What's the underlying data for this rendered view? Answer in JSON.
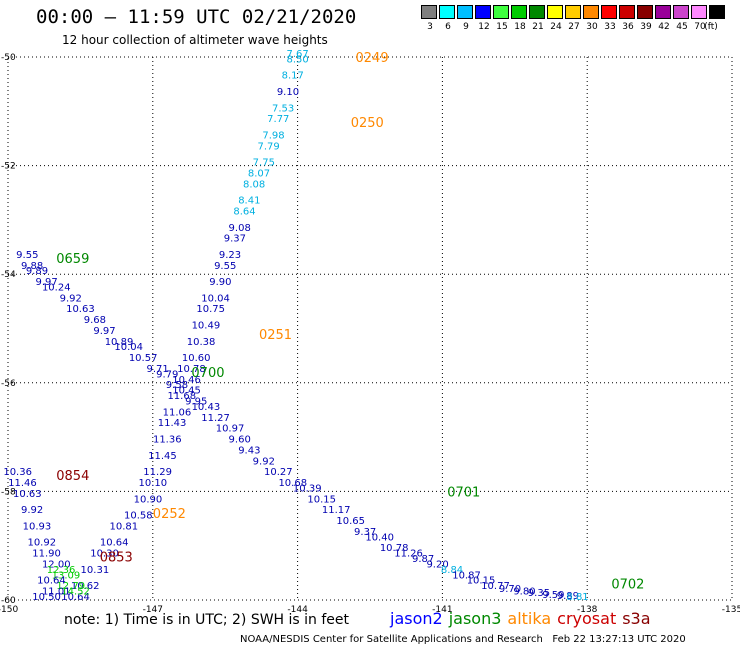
{
  "header": {
    "title": "00:00 – 11:59 UTC 02/21/2020",
    "subtitle": "12 hour collection of altimeter wave heights"
  },
  "legend": {
    "unit": "(ft)",
    "swatches": [
      {
        "label": "3",
        "color": "#7f7f7f"
      },
      {
        "label": "6",
        "color": "#00ffff"
      },
      {
        "label": "9",
        "color": "#00bfff"
      },
      {
        "label": "12",
        "color": "#0000ff"
      },
      {
        "label": "15",
        "color": "#3fff3f"
      },
      {
        "label": "18",
        "color": "#00cc00"
      },
      {
        "label": "21",
        "color": "#008800"
      },
      {
        "label": "24",
        "color": "#ffff00"
      },
      {
        "label": "27",
        "color": "#ffcc00"
      },
      {
        "label": "30",
        "color": "#ff8800"
      },
      {
        "label": "33",
        "color": "#ff0000"
      },
      {
        "label": "36",
        "color": "#cc0000"
      },
      {
        "label": "39",
        "color": "#880000"
      },
      {
        "label": "42",
        "color": "#990099"
      },
      {
        "label": "45",
        "color": "#cc44cc"
      },
      {
        "label": "70",
        "color": "#ff88ff"
      },
      {
        "label": "",
        "color": "#000000"
      }
    ]
  },
  "footer": {
    "note": "note: 1) Time is in UTC; 2) SWH is in feet",
    "satellites": [
      {
        "name": "jason2",
        "color": "#0000ff"
      },
      {
        "name": "jason3",
        "color": "#008800"
      },
      {
        "name": "altika",
        "color": "#ff8800"
      },
      {
        "name": "cryosat",
        "color": "#cc0000"
      },
      {
        "name": "s3a",
        "color": "#880000"
      }
    ],
    "credit": "NOAA/NESDIS Center for Satellite Applications and Research   Feb 22 13:27:13 UTC 2020"
  },
  "chart_data": {
    "type": "scatter",
    "x_ticks": [
      "-150",
      "-147",
      "-144",
      "-141",
      "-138",
      "-135"
    ],
    "y_ticks": [
      "-50",
      "-52",
      "-54",
      "-56",
      "-58",
      "-60"
    ],
    "xlim": [
      -150,
      -135
    ],
    "ylim": [
      -60,
      -50
    ],
    "grid": true,
    "colors": {
      "darkblue": "#0000b0",
      "cyan": "#00b0e0",
      "green": "#00cc00",
      "darkgreen": "#008800",
      "orange": "#ff8800",
      "darkred": "#8b0000"
    },
    "time_labels": [
      {
        "text": "0249",
        "lon": -142.8,
        "lat": -50.0,
        "color": "orange"
      },
      {
        "text": "0250",
        "lon": -142.9,
        "lat": -51.2,
        "color": "orange"
      },
      {
        "text": "0251",
        "lon": -144.8,
        "lat": -55.1,
        "color": "orange"
      },
      {
        "text": "0252",
        "lon": -147.0,
        "lat": -58.4,
        "color": "orange"
      },
      {
        "text": "0659",
        "lon": -149.0,
        "lat": -53.7,
        "color": "darkgreen"
      },
      {
        "text": "0700",
        "lon": -146.2,
        "lat": -55.8,
        "color": "darkgreen"
      },
      {
        "text": "0701",
        "lon": -140.9,
        "lat": -58.0,
        "color": "darkgreen"
      },
      {
        "text": "0702",
        "lon": -137.5,
        "lat": -59.7,
        "color": "darkgreen"
      },
      {
        "text": "0854",
        "lon": -149.0,
        "lat": -57.7,
        "color": "darkred"
      },
      {
        "text": "0853",
        "lon": -148.1,
        "lat": -59.2,
        "color": "darkred"
      }
    ],
    "series": [
      {
        "name": "",
        "points": [
          {
            "lon": -144.0,
            "lat": -50.0,
            "v": "7.67",
            "c": "cyan"
          },
          {
            "lon": -144.0,
            "lat": -50.1,
            "v": "8.50",
            "c": "cyan"
          },
          {
            "lon": -144.1,
            "lat": -50.4,
            "v": "8.17",
            "c": "cyan"
          },
          {
            "lon": -144.2,
            "lat": -50.7,
            "v": "9.10",
            "c": "darkblue"
          },
          {
            "lon": -144.3,
            "lat": -51.0,
            "v": "7.53",
            "c": "cyan"
          },
          {
            "lon": -144.4,
            "lat": -51.2,
            "v": "7.77",
            "c": "cyan"
          },
          {
            "lon": -144.5,
            "lat": -51.5,
            "v": "7.98",
            "c": "cyan"
          },
          {
            "lon": -144.6,
            "lat": -51.7,
            "v": "7.79",
            "c": "cyan"
          },
          {
            "lon": -144.7,
            "lat": -52.0,
            "v": "7.75",
            "c": "cyan"
          },
          {
            "lon": -144.8,
            "lat": -52.2,
            "v": "8.07",
            "c": "cyan"
          },
          {
            "lon": -144.9,
            "lat": -52.4,
            "v": "8.08",
            "c": "cyan"
          },
          {
            "lon": -145.0,
            "lat": -52.7,
            "v": "8.41",
            "c": "cyan"
          },
          {
            "lon": -145.1,
            "lat": -52.9,
            "v": "8.64",
            "c": "cyan"
          },
          {
            "lon": -145.2,
            "lat": -53.2,
            "v": "9.08",
            "c": "darkblue"
          },
          {
            "lon": -145.3,
            "lat": -53.4,
            "v": "9.37",
            "c": "darkblue"
          },
          {
            "lon": -145.4,
            "lat": -53.7,
            "v": "9.23",
            "c": "darkblue"
          },
          {
            "lon": -145.5,
            "lat": -53.9,
            "v": "9.55",
            "c": "darkblue"
          },
          {
            "lon": -145.6,
            "lat": -54.2,
            "v": "9.90",
            "c": "darkblue"
          },
          {
            "lon": -145.7,
            "lat": -54.5,
            "v": "10.04",
            "c": "darkblue"
          },
          {
            "lon": -145.8,
            "lat": -54.7,
            "v": "10.75",
            "c": "darkblue"
          },
          {
            "lon": -145.9,
            "lat": -55.0,
            "v": "10.49",
            "c": "darkblue"
          },
          {
            "lon": -146.0,
            "lat": -55.3,
            "v": "10.38",
            "c": "darkblue"
          },
          {
            "lon": -146.1,
            "lat": -55.6,
            "v": "10.60",
            "c": "darkblue"
          },
          {
            "lon": -146.2,
            "lat": -55.8,
            "v": "10.78",
            "c": "darkblue"
          },
          {
            "lon": -146.3,
            "lat": -56.0,
            "v": "10.46",
            "c": "darkblue"
          },
          {
            "lon": -146.4,
            "lat": -56.3,
            "v": "11.68",
            "c": "darkblue"
          },
          {
            "lon": -146.5,
            "lat": -56.6,
            "v": "11.06",
            "c": "darkblue"
          },
          {
            "lon": -146.6,
            "lat": -56.8,
            "v": "11.43",
            "c": "darkblue"
          },
          {
            "lon": -146.7,
            "lat": -57.1,
            "v": "11.36",
            "c": "darkblue"
          },
          {
            "lon": -146.8,
            "lat": -57.4,
            "v": "11.45",
            "c": "darkblue"
          },
          {
            "lon": -146.9,
            "lat": -57.7,
            "v": "11.29",
            "c": "darkblue"
          },
          {
            "lon": -147.0,
            "lat": -57.9,
            "v": "10.10",
            "c": "darkblue"
          },
          {
            "lon": -147.1,
            "lat": -58.2,
            "v": "10.90",
            "c": "darkblue"
          },
          {
            "lon": -147.3,
            "lat": -58.5,
            "v": "10.58",
            "c": "darkblue"
          },
          {
            "lon": -147.6,
            "lat": -58.7,
            "v": "10.81",
            "c": "darkblue"
          },
          {
            "lon": -147.8,
            "lat": -59.0,
            "v": "10.64",
            "c": "darkblue"
          },
          {
            "lon": -148.0,
            "lat": -59.2,
            "v": "10.30",
            "c": "darkblue"
          },
          {
            "lon": -148.2,
            "lat": -59.5,
            "v": "10.31",
            "c": "darkblue"
          },
          {
            "lon": -148.4,
            "lat": -59.8,
            "v": "10.62",
            "c": "darkblue"
          },
          {
            "lon": -148.6,
            "lat": -60.0,
            "v": "10.64",
            "c": "darkblue"
          }
        ]
      },
      {
        "name": "",
        "points": [
          {
            "lon": -149.6,
            "lat": -53.7,
            "v": "9.55",
            "c": "darkblue"
          },
          {
            "lon": -149.5,
            "lat": -53.9,
            "v": "9.88",
            "c": "darkblue"
          },
          {
            "lon": -149.4,
            "lat": -54.0,
            "v": "9.89",
            "c": "darkblue"
          },
          {
            "lon": -149.2,
            "lat": -54.2,
            "v": "9.97",
            "c": "darkblue"
          },
          {
            "lon": -149.0,
            "lat": -54.3,
            "v": "10.24",
            "c": "darkblue"
          },
          {
            "lon": -148.7,
            "lat": -54.5,
            "v": "9.92",
            "c": "darkblue"
          },
          {
            "lon": -148.5,
            "lat": -54.7,
            "v": "10.63",
            "c": "darkblue"
          },
          {
            "lon": -148.2,
            "lat": -54.9,
            "v": "9.68",
            "c": "darkblue"
          },
          {
            "lon": -148.0,
            "lat": -55.1,
            "v": "9.97",
            "c": "darkblue"
          },
          {
            "lon": -147.7,
            "lat": -55.3,
            "v": "10.89",
            "c": "darkblue"
          },
          {
            "lon": -147.5,
            "lat": -55.4,
            "v": "10.04",
            "c": "darkblue"
          },
          {
            "lon": -147.2,
            "lat": -55.6,
            "v": "10.57",
            "c": "darkblue"
          },
          {
            "lon": -146.9,
            "lat": -55.8,
            "v": "9.71",
            "c": "darkblue"
          },
          {
            "lon": -146.7,
            "lat": -55.9,
            "v": "9.79",
            "c": "darkblue"
          },
          {
            "lon": -146.5,
            "lat": -56.1,
            "v": "9.58",
            "c": "darkblue"
          },
          {
            "lon": -146.3,
            "lat": -56.2,
            "v": "10.45",
            "c": "darkblue"
          },
          {
            "lon": -146.1,
            "lat": -56.4,
            "v": "9.95",
            "c": "darkblue"
          },
          {
            "lon": -145.9,
            "lat": -56.5,
            "v": "10.43",
            "c": "darkblue"
          },
          {
            "lon": -145.7,
            "lat": -56.7,
            "v": "11.27",
            "c": "darkblue"
          },
          {
            "lon": -145.4,
            "lat": -56.9,
            "v": "10.97",
            "c": "darkblue"
          },
          {
            "lon": -145.2,
            "lat": -57.1,
            "v": "9.60",
            "c": "darkblue"
          },
          {
            "lon": -145.0,
            "lat": -57.3,
            "v": "9.43",
            "c": "darkblue"
          },
          {
            "lon": -144.7,
            "lat": -57.5,
            "v": "9.92",
            "c": "darkblue"
          },
          {
            "lon": -144.4,
            "lat": -57.7,
            "v": "10.27",
            "c": "darkblue"
          },
          {
            "lon": -144.1,
            "lat": -57.9,
            "v": "10.68",
            "c": "darkblue"
          },
          {
            "lon": -143.8,
            "lat": -58.0,
            "v": "10.39",
            "c": "darkblue"
          },
          {
            "lon": -143.5,
            "lat": -58.2,
            "v": "10.15",
            "c": "darkblue"
          },
          {
            "lon": -143.2,
            "lat": -58.4,
            "v": "11.17",
            "c": "darkblue"
          },
          {
            "lon": -142.9,
            "lat": -58.6,
            "v": "10.65",
            "c": "darkblue"
          },
          {
            "lon": -142.6,
            "lat": -58.8,
            "v": "9.37",
            "c": "darkblue"
          },
          {
            "lon": -142.3,
            "lat": -58.9,
            "v": "10.40",
            "c": "darkblue"
          },
          {
            "lon": -142.0,
            "lat": -59.1,
            "v": "10.78",
            "c": "darkblue"
          },
          {
            "lon": -141.7,
            "lat": -59.2,
            "v": "11.26",
            "c": "darkblue"
          },
          {
            "lon": -141.4,
            "lat": -59.3,
            "v": "9.87",
            "c": "darkblue"
          },
          {
            "lon": -141.1,
            "lat": -59.4,
            "v": "9.20",
            "c": "darkblue"
          },
          {
            "lon": -140.8,
            "lat": -59.5,
            "v": "8.84",
            "c": "cyan"
          },
          {
            "lon": -140.5,
            "lat": -59.6,
            "v": "10.87",
            "c": "darkblue"
          },
          {
            "lon": -140.2,
            "lat": -59.7,
            "v": "10.15",
            "c": "darkblue"
          },
          {
            "lon": -139.9,
            "lat": -59.8,
            "v": "10.77",
            "c": "darkblue"
          },
          {
            "lon": -139.6,
            "lat": -59.85,
            "v": "9.70",
            "c": "darkblue"
          },
          {
            "lon": -139.3,
            "lat": -59.9,
            "v": "9.80",
            "c": "darkblue"
          },
          {
            "lon": -139.0,
            "lat": -59.93,
            "v": "9.35",
            "c": "darkblue"
          },
          {
            "lon": -138.7,
            "lat": -59.96,
            "v": "9.59",
            "c": "darkblue"
          },
          {
            "lon": -138.4,
            "lat": -59.98,
            "v": "9.89",
            "c": "darkblue"
          },
          {
            "lon": -138.2,
            "lat": -60.0,
            "v": "8.81",
            "c": "cyan"
          }
        ]
      },
      {
        "name": "",
        "points": [
          {
            "lon": -149.8,
            "lat": -57.7,
            "v": "10.36",
            "c": "darkblue"
          },
          {
            "lon": -149.7,
            "lat": -57.9,
            "v": "11.46",
            "c": "darkblue"
          },
          {
            "lon": -149.6,
            "lat": -58.1,
            "v": "10.63",
            "c": "darkblue"
          },
          {
            "lon": -149.5,
            "lat": -58.4,
            "v": "9.92",
            "c": "darkblue"
          },
          {
            "lon": -149.4,
            "lat": -58.7,
            "v": "10.93",
            "c": "darkblue"
          },
          {
            "lon": -149.3,
            "lat": -59.0,
            "v": "10.92",
            "c": "darkblue"
          },
          {
            "lon": -149.2,
            "lat": -59.2,
            "v": "11.90",
            "c": "darkblue"
          },
          {
            "lon": -149.0,
            "lat": -59.4,
            "v": "12.00",
            "c": "darkblue"
          },
          {
            "lon": -148.9,
            "lat": -59.5,
            "v": "12.36",
            "c": "green"
          },
          {
            "lon": -148.8,
            "lat": -59.6,
            "v": "13.09",
            "c": "green"
          },
          {
            "lon": -148.7,
            "lat": -59.8,
            "v": "12.79",
            "c": "green"
          },
          {
            "lon": -148.6,
            "lat": -59.9,
            "v": "14.52",
            "c": "green"
          },
          {
            "lon": -149.1,
            "lat": -59.7,
            "v": "10.64",
            "c": "darkblue"
          },
          {
            "lon": -149.0,
            "lat": -59.9,
            "v": "11.01",
            "c": "darkblue"
          },
          {
            "lon": -149.2,
            "lat": -60.0,
            "v": "10.50",
            "c": "darkblue"
          }
        ]
      }
    ]
  }
}
